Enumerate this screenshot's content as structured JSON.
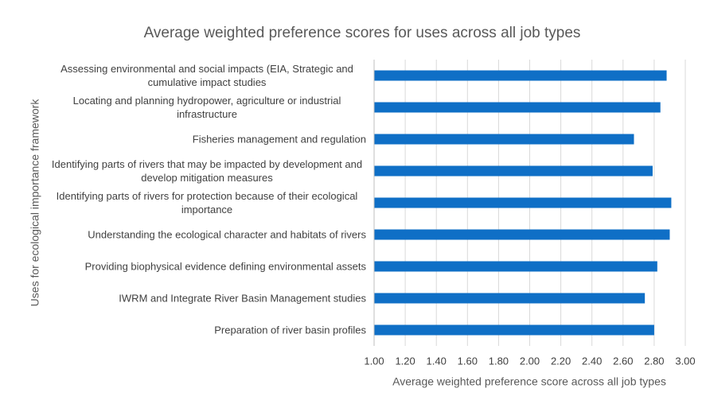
{
  "chart_data": {
    "type": "barh",
    "title": "Average weighted preference scores for uses across all job types",
    "xlabel": "Average weighted preference score across all job types",
    "ylabel": "Uses for ecological importance framework",
    "categories": [
      "Assessing environmental and social impacts (EIA, Strategic and cumulative impact studies",
      "Locating and planning hydropower, agriculture or industrial infrastructure",
      "Fisheries management and regulation",
      "Identifying parts of rivers that may be impacted by development and develop mitigation measures",
      "Identifying parts of rivers for protection because of their ecological importance",
      "Understanding the ecological character and habitats of rivers",
      "Providing biophysical evidence defining environmental assets",
      "IWRM and Integrate River Basin Management studies",
      "Preparation of river basin profiles"
    ],
    "values": [
      2.88,
      2.84,
      2.67,
      2.79,
      2.91,
      2.9,
      2.82,
      2.74,
      2.8
    ],
    "color": "#0f6fc6",
    "xlim": [
      1,
      3
    ],
    "xticks": [
      {
        "value": 1,
        "label": "1.00"
      },
      {
        "value": 1.2,
        "label": "1.20"
      },
      {
        "value": 1.4,
        "label": "1.40"
      },
      {
        "value": 1.6,
        "label": "1.60"
      },
      {
        "value": 1.8,
        "label": "1.80"
      },
      {
        "value": 2,
        "label": "2.00"
      },
      {
        "value": 2.2,
        "label": "2.20"
      },
      {
        "value": 2.4,
        "label": "2.40"
      },
      {
        "value": 2.6,
        "label": "2.60"
      },
      {
        "value": 2.8,
        "label": "2.80"
      },
      {
        "value": 3,
        "label": "3.00"
      }
    ],
    "grid": true
  }
}
